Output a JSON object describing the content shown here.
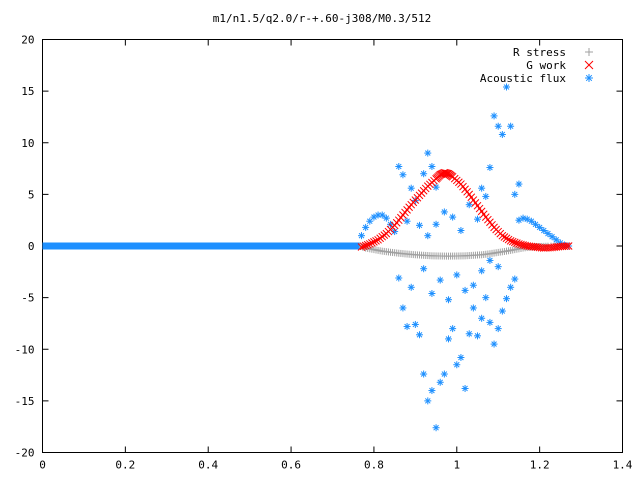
{
  "chart_data": {
    "type": "scatter",
    "title": "m1/n1.5/q2.0/r-+.60-j308/M0.3/512",
    "xlabel": "",
    "ylabel": "",
    "xlim": [
      0,
      1.4
    ],
    "ylim": [
      -20,
      20
    ],
    "x_ticks": [
      0,
      0.2,
      0.4,
      0.6,
      0.8,
      1,
      1.2,
      1.4
    ],
    "x_tick_labels": [
      "0",
      "0.2",
      "0.4",
      "0.6",
      "0.8",
      "1",
      "1.2",
      "1.4"
    ],
    "y_ticks": [
      -20,
      -15,
      -10,
      -5,
      0,
      5,
      10,
      15,
      20
    ],
    "y_tick_labels": [
      "-20",
      "-15",
      "-10",
      "-5",
      "0",
      "5",
      "10",
      "15",
      "20"
    ],
    "grid": false,
    "legend_position": "top-right",
    "series": [
      {
        "name": "R stress",
        "marker": "+",
        "color": "#a0a0a0",
        "points": [
          [
            0.765,
            0.0
          ],
          [
            0.78,
            -0.2
          ],
          [
            0.8,
            -0.35
          ],
          [
            0.82,
            -0.5
          ],
          [
            0.84,
            -0.6
          ],
          [
            0.86,
            -0.7
          ],
          [
            0.88,
            -0.78
          ],
          [
            0.9,
            -0.85
          ],
          [
            0.92,
            -0.9
          ],
          [
            0.94,
            -0.95
          ],
          [
            0.96,
            -0.97
          ],
          [
            0.98,
            -0.98
          ],
          [
            1.0,
            -0.97
          ],
          [
            1.02,
            -0.95
          ],
          [
            1.04,
            -0.9
          ],
          [
            1.06,
            -0.85
          ],
          [
            1.08,
            -0.75
          ],
          [
            1.1,
            -0.62
          ],
          [
            1.12,
            -0.5
          ],
          [
            1.14,
            -0.35
          ],
          [
            1.16,
            -0.2
          ],
          [
            1.18,
            -0.1
          ],
          [
            1.2,
            -0.05
          ],
          [
            1.22,
            -0.02
          ],
          [
            1.25,
            0.0
          ]
        ]
      },
      {
        "name": "G work",
        "marker": "x",
        "color": "#ff0000",
        "points": [
          [
            0.77,
            -0.1
          ],
          [
            0.79,
            0.2
          ],
          [
            0.81,
            0.6
          ],
          [
            0.83,
            1.2
          ],
          [
            0.85,
            2.0
          ],
          [
            0.87,
            3.0
          ],
          [
            0.89,
            4.0
          ],
          [
            0.91,
            4.9
          ],
          [
            0.93,
            5.8
          ],
          [
            0.95,
            6.5
          ],
          [
            0.96,
            6.9
          ],
          [
            0.97,
            7.1
          ],
          [
            0.98,
            7.0
          ],
          [
            0.99,
            6.7
          ],
          [
            1.01,
            6.0
          ],
          [
            1.03,
            5.0
          ],
          [
            1.05,
            3.9
          ],
          [
            1.07,
            2.8
          ],
          [
            1.09,
            1.8
          ],
          [
            1.11,
            1.0
          ],
          [
            1.13,
            0.5
          ],
          [
            1.15,
            0.2
          ],
          [
            1.17,
            0.0
          ],
          [
            1.19,
            -0.1
          ],
          [
            1.21,
            -0.2
          ],
          [
            1.23,
            -0.15
          ],
          [
            1.25,
            -0.05
          ],
          [
            1.27,
            0.0
          ]
        ]
      },
      {
        "name": "Acoustic flux",
        "marker": "*",
        "color": "#1e90ff",
        "baseline_x": [
          0,
          0.765
        ],
        "baseline_y": 0,
        "points": [
          [
            0.77,
            1.0
          ],
          [
            0.78,
            1.8
          ],
          [
            0.79,
            2.4
          ],
          [
            0.8,
            2.8
          ],
          [
            0.81,
            3.0
          ],
          [
            0.82,
            3.0
          ],
          [
            0.83,
            2.7
          ],
          [
            0.84,
            2.1
          ],
          [
            0.85,
            1.4
          ],
          [
            1.15,
            2.5
          ],
          [
            1.16,
            2.7
          ],
          [
            1.17,
            2.6
          ],
          [
            1.18,
            2.4
          ],
          [
            1.19,
            2.1
          ],
          [
            1.2,
            1.8
          ],
          [
            1.21,
            1.5
          ],
          [
            1.22,
            1.2
          ],
          [
            1.23,
            0.9
          ],
          [
            1.24,
            0.6
          ],
          [
            1.25,
            0.3
          ],
          [
            1.26,
            0.1
          ],
          [
            1.27,
            0.0
          ],
          [
            0.86,
            7.7
          ],
          [
            0.87,
            6.9
          ],
          [
            0.88,
            2.4
          ],
          [
            0.89,
            5.6
          ],
          [
            0.9,
            4.4
          ],
          [
            0.91,
            2.0
          ],
          [
            0.92,
            7.0
          ],
          [
            0.93,
            9.0
          ],
          [
            0.94,
            7.7
          ],
          [
            0.95,
            5.7
          ],
          [
            1.06,
            5.6
          ],
          [
            1.08,
            7.6
          ],
          [
            1.09,
            12.6
          ],
          [
            1.1,
            11.6
          ],
          [
            1.11,
            10.8
          ],
          [
            1.12,
            15.4
          ],
          [
            1.13,
            11.6
          ],
          [
            1.14,
            5.0
          ],
          [
            1.15,
            6.0
          ],
          [
            1.07,
            4.8
          ],
          [
            0.86,
            -3.1
          ],
          [
            0.87,
            -6.0
          ],
          [
            0.88,
            -7.8
          ],
          [
            0.89,
            -4.0
          ],
          [
            0.9,
            -7.6
          ],
          [
            0.91,
            -8.6
          ],
          [
            0.92,
            -12.4
          ],
          [
            0.93,
            -15.0
          ],
          [
            0.94,
            -14.0
          ],
          [
            0.95,
            -17.6
          ],
          [
            0.96,
            -13.2
          ],
          [
            0.97,
            -12.4
          ],
          [
            0.98,
            -9.0
          ],
          [
            0.99,
            -8.0
          ],
          [
            1.0,
            -11.5
          ],
          [
            1.01,
            -10.8
          ],
          [
            1.02,
            -13.8
          ],
          [
            1.03,
            -8.5
          ],
          [
            1.04,
            -6.0
          ],
          [
            1.05,
            -8.7
          ],
          [
            1.06,
            -7.0
          ],
          [
            1.07,
            -5.0
          ],
          [
            1.08,
            -7.4
          ],
          [
            1.09,
            -9.5
          ],
          [
            1.1,
            -8.0
          ],
          [
            1.11,
            -6.3
          ],
          [
            1.12,
            -5.1
          ],
          [
            1.13,
            -4.0
          ],
          [
            1.14,
            -3.2
          ],
          [
            0.92,
            -2.2
          ],
          [
            0.94,
            -4.6
          ],
          [
            0.96,
            -3.3
          ],
          [
            0.98,
            -5.2
          ],
          [
            1.0,
            -2.8
          ],
          [
            1.02,
            -4.3
          ],
          [
            1.04,
            -3.8
          ],
          [
            1.06,
            -2.4
          ],
          [
            1.08,
            -1.4
          ],
          [
            1.1,
            -2.0
          ],
          [
            0.93,
            1.0
          ],
          [
            0.95,
            2.1
          ],
          [
            0.97,
            3.3
          ],
          [
            0.99,
            2.8
          ],
          [
            1.01,
            1.5
          ],
          [
            1.03,
            4.0
          ],
          [
            1.05,
            2.6
          ]
        ]
      }
    ]
  }
}
